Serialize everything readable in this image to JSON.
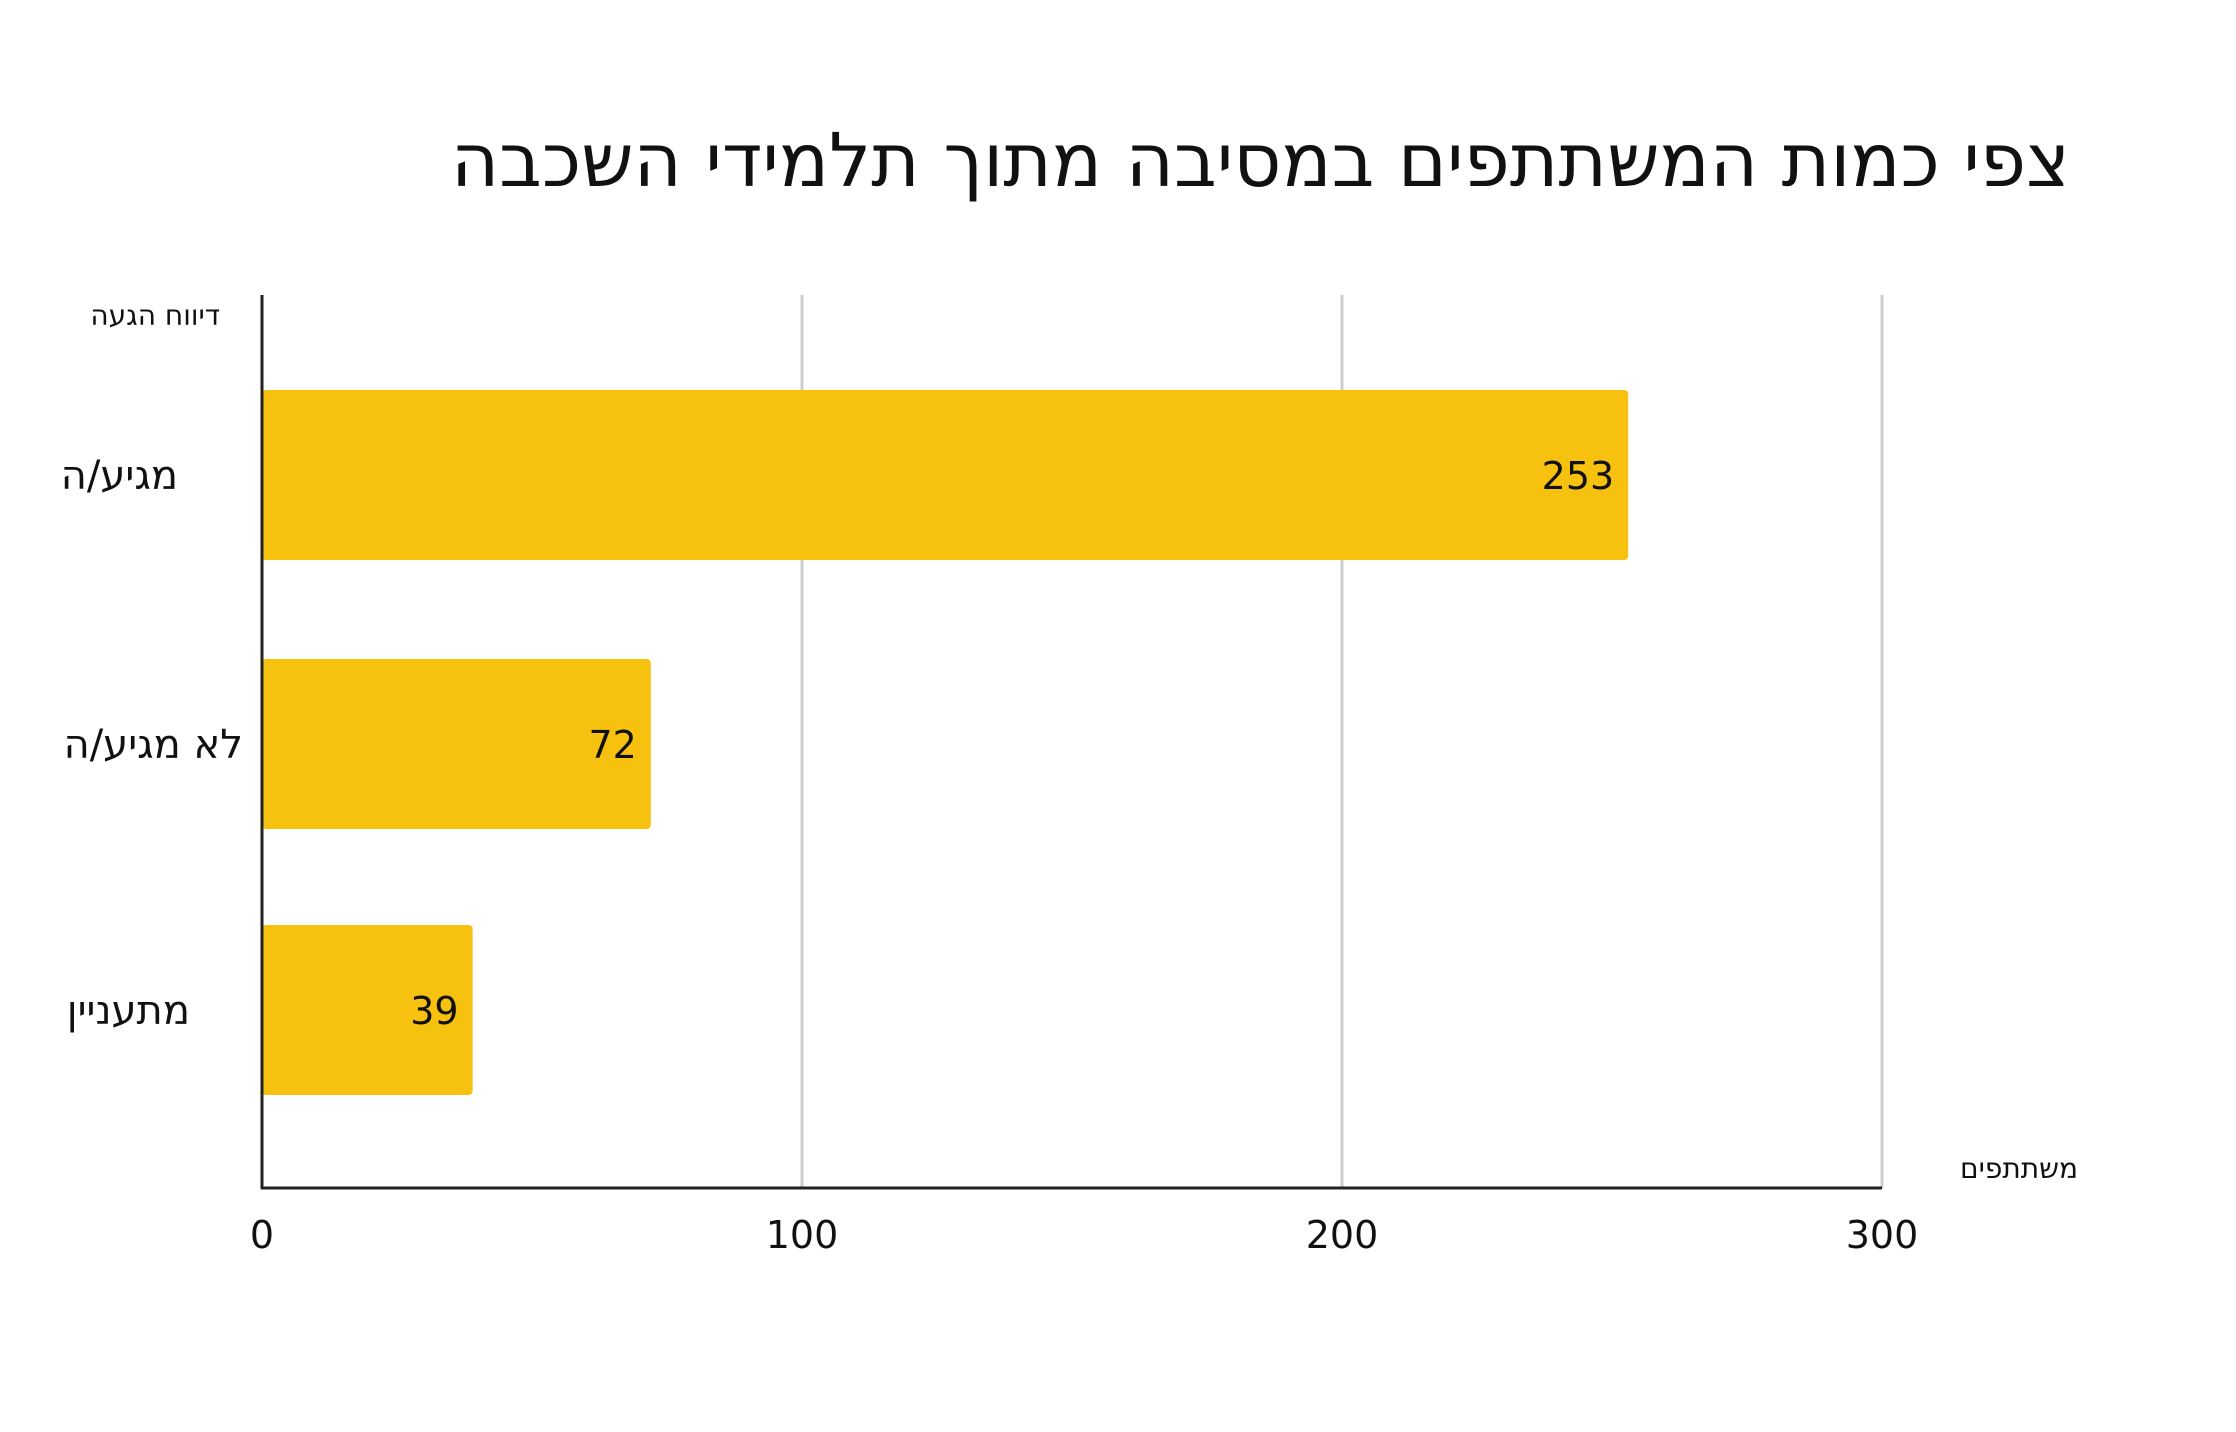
{
  "chart_data": {
    "type": "bar",
    "orientation": "horizontal",
    "title": "צפי כמות המשתתפים במסיבה מתוך תלמידי השכבה",
    "ylabel": "דיווח הגעה",
    "xlabel": "משתתפים",
    "categories": [
      "מגיע/ה",
      "לא מגיע/ה",
      "מתעניין"
    ],
    "values": [
      253,
      72,
      39
    ],
    "data_labels": [
      "253",
      "72",
      "39"
    ],
    "xlim": [
      0,
      300
    ],
    "x_ticks": [
      0,
      100,
      200,
      300
    ],
    "x_tick_labels": [
      "0",
      "100",
      "200",
      "300"
    ],
    "grid": true,
    "legend": "none",
    "colors": {
      "bar": "#F7C110",
      "grid": "#CCCCCC",
      "axis": "#222222",
      "text": "#111111"
    }
  }
}
